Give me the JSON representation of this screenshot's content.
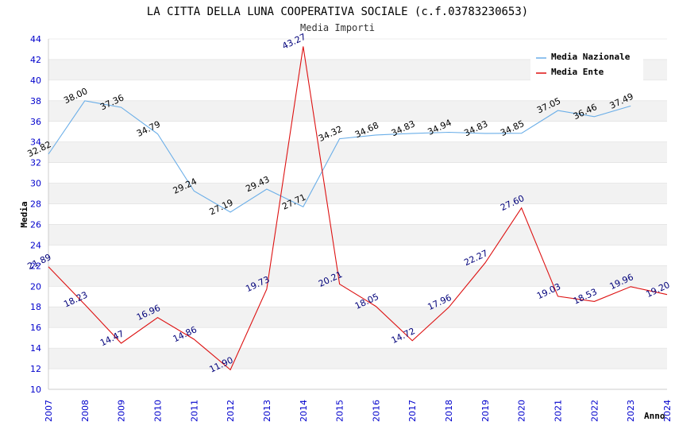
{
  "chart_data": {
    "type": "line",
    "title": "LA CITTA DELLA LUNA COOPERATIVA SOCIALE (c.f.03783230653)",
    "subtitle": "Media Importi",
    "xlabel": "Anno",
    "ylabel": "Media",
    "ylim": [
      10,
      44
    ],
    "yticks": [
      "10",
      "12",
      "14",
      "16",
      "18",
      "20",
      "22",
      "24",
      "26",
      "28",
      "30",
      "32",
      "34",
      "36",
      "38",
      "40",
      "42",
      "44"
    ],
    "x": [
      "2007",
      "2008",
      "2009",
      "2010",
      "2011",
      "2012",
      "2013",
      "2014",
      "2015",
      "2016",
      "2017",
      "2018",
      "2019",
      "2020",
      "2021",
      "2022",
      "2023",
      "2024"
    ],
    "grid": "horizontal alternating bands",
    "legend_position": "top-right",
    "series": [
      {
        "name": "Media Nazionale",
        "color": "#6aaee8",
        "label_color": "#000000",
        "values": [
          32.82,
          38.0,
          37.36,
          34.79,
          29.24,
          27.19,
          29.43,
          27.71,
          34.32,
          34.68,
          34.83,
          34.94,
          34.83,
          34.85,
          37.05,
          36.46,
          37.49,
          null
        ],
        "labels": [
          "32.82",
          "38.00",
          "37.36",
          "34.79",
          "29.24",
          "27.19",
          "29.43",
          "27.71",
          "34.32",
          "34.68",
          "34.83",
          "34.94",
          "34.83",
          "34.85",
          "37.05",
          "36.46",
          "37.49",
          null
        ]
      },
      {
        "name": "Media Ente",
        "color": "#dd1111",
        "label_color": "#00007a",
        "values": [
          21.89,
          18.23,
          14.47,
          16.96,
          14.86,
          11.9,
          19.73,
          43.27,
          20.21,
          18.05,
          14.72,
          17.96,
          22.27,
          27.6,
          19.03,
          18.53,
          19.96,
          19.2
        ],
        "labels": [
          "21.89",
          "18.23",
          "14.47",
          "16.96",
          "14.86",
          "11.90",
          "19.73",
          "43.27",
          "20.21",
          "18.05",
          "14.72",
          "17.96",
          "22.27",
          "27.60",
          "19.03",
          "18.53",
          "19.96",
          "19.20"
        ]
      }
    ],
    "colors": {
      "tick": "#0000cc",
      "grid_band": "#f2f2f2",
      "grid_line": "#dddddd",
      "axis": "#cccccc"
    }
  }
}
